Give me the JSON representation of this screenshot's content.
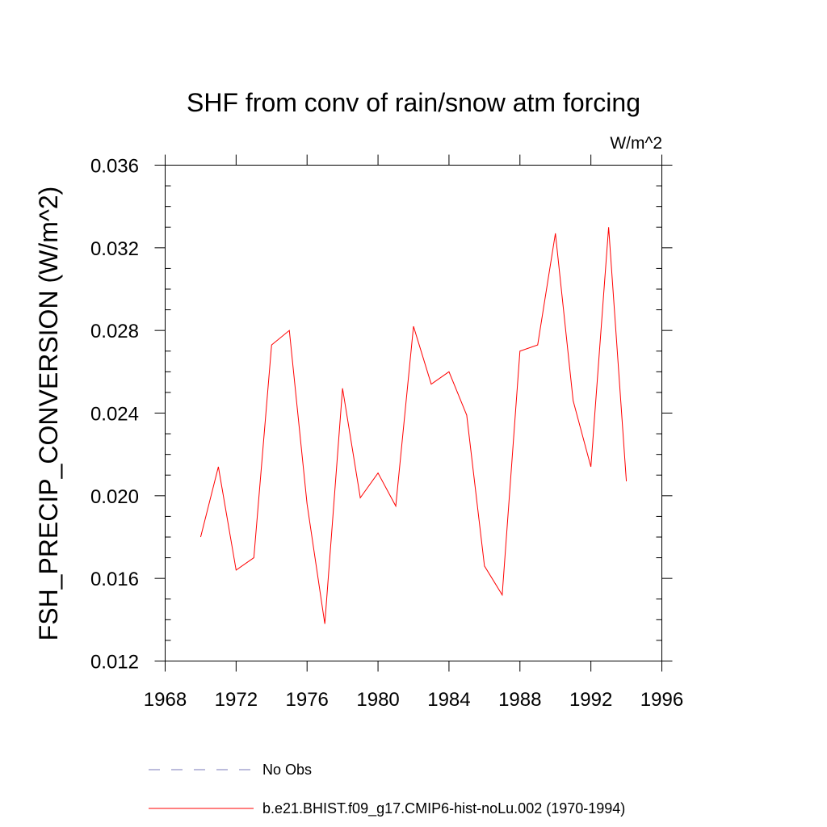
{
  "chart_data": {
    "type": "line",
    "title": "SHF from conv of rain/snow atm forcing",
    "units_label": "W/m^2",
    "ylabel": "FSH_PRECIP_CONVERSION  (W/m^2)",
    "xlabel": "",
    "xlim": [
      1968,
      1996
    ],
    "ylim": [
      0.012,
      0.036
    ],
    "xticks": [
      "1968",
      "1972",
      "1976",
      "1980",
      "1984",
      "1988",
      "1992",
      "1996"
    ],
    "yticks": [
      "0.012",
      "0.016",
      "0.020",
      "0.024",
      "0.028",
      "0.032",
      "0.036"
    ],
    "grid": false,
    "legend_placement": "bottom",
    "series": [
      {
        "name": "b.e21.BHIST.f09_g17.CMIP6-hist-noLu.002 (1970-1994)",
        "color": "#ff0000",
        "dash": "solid",
        "x": [
          1970,
          1971,
          1972,
          1973,
          1974,
          1975,
          1976,
          1977,
          1978,
          1979,
          1980,
          1981,
          1982,
          1983,
          1984,
          1985,
          1986,
          1987,
          1988,
          1989,
          1990,
          1991,
          1992,
          1993,
          1994
        ],
        "y": [
          0.018,
          0.0214,
          0.0164,
          0.017,
          0.0273,
          0.028,
          0.0196,
          0.0138,
          0.0252,
          0.0199,
          0.0211,
          0.0195,
          0.0282,
          0.0254,
          0.026,
          0.0239,
          0.0166,
          0.0152,
          0.027,
          0.0273,
          0.0327,
          0.0246,
          0.0214,
          0.033,
          0.0207
        ]
      }
    ],
    "legend": [
      {
        "label": "No Obs",
        "color": "#7a7ab8",
        "dash": "dashed"
      },
      {
        "label": "b.e21.BHIST.f09_g17.CMIP6-hist-noLu.002 (1970-1994)",
        "color": "#ff0000",
        "dash": "solid"
      }
    ]
  }
}
